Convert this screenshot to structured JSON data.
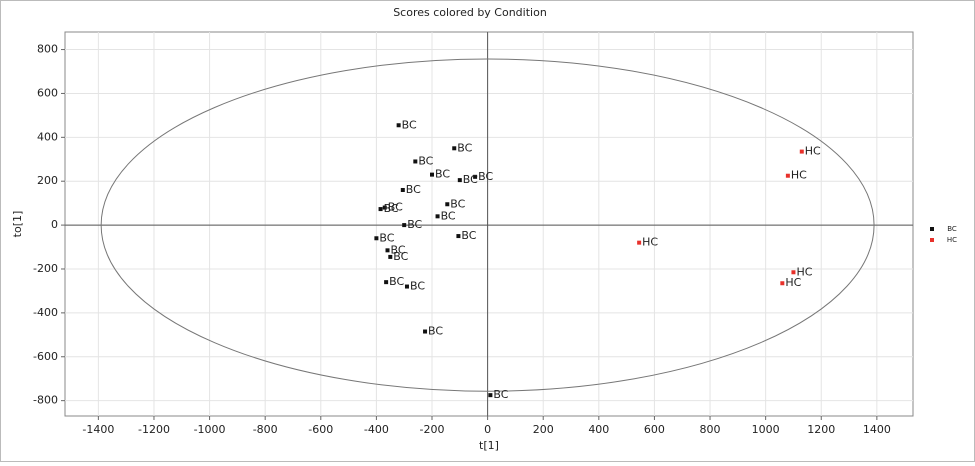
{
  "chart_data": {
    "type": "scatter",
    "title": "Scores colored by Condition",
    "x_label": "t[1]",
    "y_label": "to[1]",
    "xlim": [
      -1520,
      1530
    ],
    "ylim": [
      -870,
      880
    ],
    "xticks": [
      -1400,
      -1200,
      -1000,
      -800,
      -600,
      -400,
      -200,
      0,
      200,
      400,
      600,
      800,
      1000,
      1200,
      1400
    ],
    "yticks": [
      -800,
      -600,
      -400,
      -200,
      0,
      200,
      400,
      600,
      800
    ],
    "grid": true,
    "legend": "right",
    "ellipse_radii": [
      1390,
      757
    ],
    "series": [
      {
        "name": "BC",
        "color": "#111111",
        "x": [
          -320,
          -120,
          -260,
          -200,
          -45,
          -100,
          -305,
          -145,
          -370,
          -385,
          -180,
          -300,
          -400,
          -360,
          -350,
          -105,
          -365,
          -290,
          -225,
          10
        ],
        "y": [
          455,
          350,
          290,
          230,
          220,
          205,
          160,
          95,
          80,
          73,
          40,
          0,
          -60,
          -115,
          -145,
          -50,
          -260,
          -280,
          -485,
          -775
        ],
        "labels": [
          "BC",
          "BC",
          "BC",
          "BC",
          "BC",
          "BC",
          "BC",
          "BC",
          "BC",
          "BC",
          "BC",
          "BC",
          "BC",
          "BC",
          "BC",
          "BC",
          "BC",
          "BC",
          "BC",
          "BC"
        ]
      },
      {
        "name": "HC",
        "color": "#e8312b",
        "x": [
          1130,
          1080,
          545,
          1100,
          1060
        ],
        "y": [
          335,
          225,
          -80,
          -215,
          -265
        ],
        "labels": [
          "HC",
          "HC",
          "HC",
          "HC",
          "HC"
        ]
      }
    ]
  }
}
